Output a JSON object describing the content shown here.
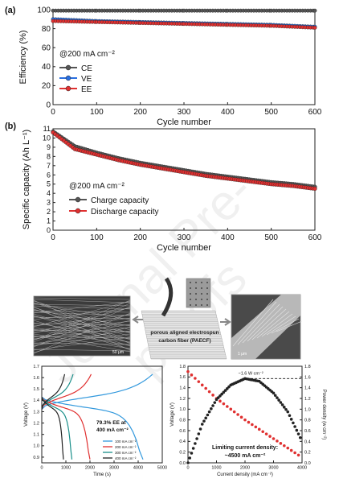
{
  "watermark": "Journal Pre-proofs",
  "colors": {
    "ce": "#555555",
    "ve": "#2a6fe0",
    "ee": "#e03030",
    "charge": "#555555",
    "discharge": "#e03030",
    "accent_teal": "#1a8f8a",
    "accent_blue": "#3399dd",
    "dark": "#222222"
  },
  "chart_data": [
    {
      "panel": "(a)",
      "type": "line",
      "xlabel": "Cycle number",
      "ylabel": "Efficiency (%)",
      "xlim": [
        0,
        600
      ],
      "ylim": [
        0,
        100
      ],
      "xticks": [
        "0",
        "100",
        "200",
        "300",
        "400",
        "500",
        "600"
      ],
      "yticks": [
        "0",
        "20",
        "40",
        "60",
        "80",
        "100"
      ],
      "annotation": "@200 mA cm⁻²",
      "legend_position": "left-middle",
      "series": [
        {
          "name": "CE",
          "color": "#555555",
          "x": [
            0,
            100,
            200,
            300,
            400,
            500,
            600
          ],
          "y": [
            99,
            99,
            99,
            99,
            99,
            99,
            99
          ]
        },
        {
          "name": "VE",
          "color": "#2a6fe0",
          "x": [
            0,
            100,
            200,
            300,
            400,
            500,
            600
          ],
          "y": [
            90,
            88,
            87,
            86,
            85,
            84,
            82
          ]
        },
        {
          "name": "EE",
          "color": "#e03030",
          "x": [
            0,
            100,
            200,
            300,
            400,
            500,
            600
          ],
          "y": [
            88,
            87,
            86,
            85,
            84,
            83,
            81
          ]
        }
      ]
    },
    {
      "panel": "(b)",
      "type": "line",
      "xlabel": "Cycle number",
      "ylabel": "Specific capacity (Ah L⁻¹)",
      "xlim": [
        0,
        600
      ],
      "ylim": [
        0,
        11
      ],
      "xticks": [
        "0",
        "100",
        "200",
        "300",
        "400",
        "500",
        "600"
      ],
      "yticks": [
        "0",
        "1",
        "2",
        "3",
        "4",
        "5",
        "6",
        "7",
        "8",
        "9",
        "10",
        "11"
      ],
      "annotation": "@200 mA cm⁻²",
      "legend_position": "left-bottom",
      "series": [
        {
          "name": "Charge capacity",
          "color": "#555555",
          "x": [
            0,
            50,
            100,
            150,
            200,
            250,
            300,
            350,
            400,
            450,
            500,
            550,
            600
          ],
          "y": [
            10.7,
            9.1,
            8.4,
            7.8,
            7.3,
            6.9,
            6.5,
            6.1,
            5.8,
            5.5,
            5.2,
            5.0,
            4.7
          ]
        },
        {
          "name": "Discharge capacity",
          "color": "#e03030",
          "x": [
            0,
            50,
            100,
            150,
            200,
            250,
            300,
            350,
            400,
            450,
            500,
            550,
            600
          ],
          "y": [
            10.6,
            8.8,
            8.2,
            7.6,
            7.1,
            6.7,
            6.3,
            5.9,
            5.6,
            5.3,
            5.0,
            4.8,
            4.5
          ]
        }
      ]
    },
    {
      "type": "line",
      "xlabel": "Time (s)",
      "ylabel": "Voltage (V)",
      "xlim": [
        0,
        5000
      ],
      "ylim": [
        0.85,
        1.7
      ],
      "xticks": [
        "0",
        "1000",
        "2000",
        "3000",
        "4000",
        "5000"
      ],
      "yticks": [
        "0.9",
        "1.0",
        "1.1",
        "1.2",
        "1.3",
        "1.4",
        "1.5",
        "1.6",
        "1.7"
      ],
      "annotation": "79.3% EE at 400 mA cm⁻²",
      "legend_position": "bottom-right",
      "series": [
        {
          "name": "100 mA cm⁻²",
          "color": "#3399dd",
          "charge_end": 4600,
          "discharge_end": 4200
        },
        {
          "name": "200 mA cm⁻²",
          "color": "#e03030",
          "charge_end": 2050,
          "discharge_end": 2000
        },
        {
          "name": "300 mA cm⁻²",
          "color": "#1a8f8a",
          "charge_end": 1300,
          "discharge_end": 1250
        },
        {
          "name": "400 mA cm⁻²",
          "color": "#222222",
          "charge_end": 950,
          "discharge_end": 900
        }
      ]
    },
    {
      "type": "line",
      "xlabel": "Current density (mA cm⁻²)",
      "ylabel": "Voltage (V)",
      "ylabel_right": "Power density (w cm⁻²)",
      "xlim": [
        0,
        4000
      ],
      "ylim": [
        0,
        1.8
      ],
      "xticks": [
        "0",
        "1000",
        "2000",
        "3000",
        "4000"
      ],
      "yticks": [
        "0.0",
        "0.2",
        "0.4",
        "0.6",
        "0.8",
        "1.0",
        "1.2",
        "1.4",
        "1.6",
        "1.8"
      ],
      "yticks_right": [
        "0.0",
        "0.2",
        "0.4",
        "0.6",
        "0.8",
        "1.0",
        "1.2",
        "1.4",
        "1.6",
        "1.8"
      ],
      "peak_label": "~1.6 W cm⁻²",
      "annotation_line1": "Limiting current density:",
      "annotation_line2": "~4500 mA cm⁻²",
      "series": [
        {
          "name": "Voltage",
          "color": "#e03030",
          "x": [
            0,
            1000,
            2000,
            3000,
            4000
          ],
          "y": [
            1.7,
            1.2,
            0.8,
            0.45,
            0.1
          ]
        },
        {
          "name": "Power",
          "color": "#222222",
          "x": [
            0,
            500,
            1000,
            1500,
            2000,
            2500,
            3000,
            3500,
            4000
          ],
          "y": [
            0.0,
            0.72,
            1.18,
            1.45,
            1.57,
            1.52,
            1.3,
            0.95,
            0.4
          ]
        }
      ]
    }
  ],
  "figure_labels": {
    "fiber_label_line1": "porous aligned electrospun",
    "fiber_label_line2": "carbon fiber (PAECF)",
    "scale_left": "50 μm",
    "scale_right": "1 μm"
  }
}
